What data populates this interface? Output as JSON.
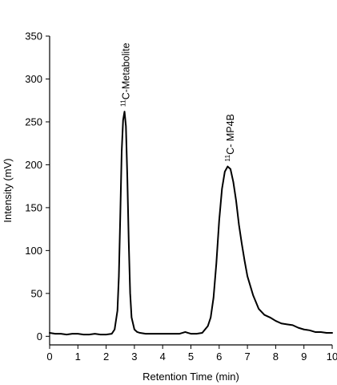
{
  "chart_data": {
    "type": "line",
    "xlabel": "Retention Time (min)",
    "ylabel": "Intensity (mV)",
    "xlim": [
      0,
      10
    ],
    "ylim": [
      -10,
      350
    ],
    "x_ticks": [
      0,
      1,
      2,
      3,
      4,
      5,
      6,
      7,
      8,
      9,
      10
    ],
    "y_ticks": [
      0,
      50,
      100,
      150,
      200,
      250,
      300,
      350
    ],
    "grid": false,
    "series": [
      {
        "color": "#000000",
        "x": [
          0.0,
          0.2,
          0.4,
          0.6,
          0.8,
          1.0,
          1.2,
          1.4,
          1.6,
          1.8,
          2.0,
          2.2,
          2.3,
          2.4,
          2.45,
          2.5,
          2.55,
          2.6,
          2.65,
          2.7,
          2.75,
          2.8,
          2.85,
          2.9,
          3.0,
          3.1,
          3.2,
          3.4,
          3.6,
          3.8,
          4.0,
          4.2,
          4.4,
          4.6,
          4.8,
          4.9,
          5.0,
          5.2,
          5.4,
          5.6,
          5.7,
          5.8,
          5.9,
          6.0,
          6.1,
          6.2,
          6.3,
          6.4,
          6.5,
          6.6,
          6.7,
          6.8,
          6.9,
          7.0,
          7.2,
          7.4,
          7.6,
          7.8,
          8.0,
          8.2,
          8.4,
          8.6,
          8.8,
          9.0,
          9.2,
          9.4,
          9.6,
          9.8,
          10.0
        ],
        "y": [
          4,
          3,
          3,
          2,
          3,
          3,
          2,
          2,
          3,
          2,
          2,
          3,
          8,
          30,
          70,
          140,
          215,
          252,
          262,
          245,
          185,
          110,
          50,
          22,
          8,
          5,
          4,
          3,
          3,
          3,
          3,
          3,
          3,
          3,
          5,
          4,
          3,
          3,
          4,
          12,
          22,
          45,
          85,
          135,
          172,
          192,
          198,
          195,
          180,
          158,
          130,
          108,
          88,
          70,
          48,
          32,
          25,
          22,
          18,
          15,
          14,
          13,
          10,
          8,
          7,
          5,
          5,
          4,
          4
        ]
      }
    ],
    "annotations": [
      {
        "sup": "11",
        "text": "C-Metabolite",
        "x": 2.7,
        "y": 262
      },
      {
        "sup": "11",
        "text": "C- MP4B",
        "x": 6.4,
        "y": 198
      }
    ]
  }
}
